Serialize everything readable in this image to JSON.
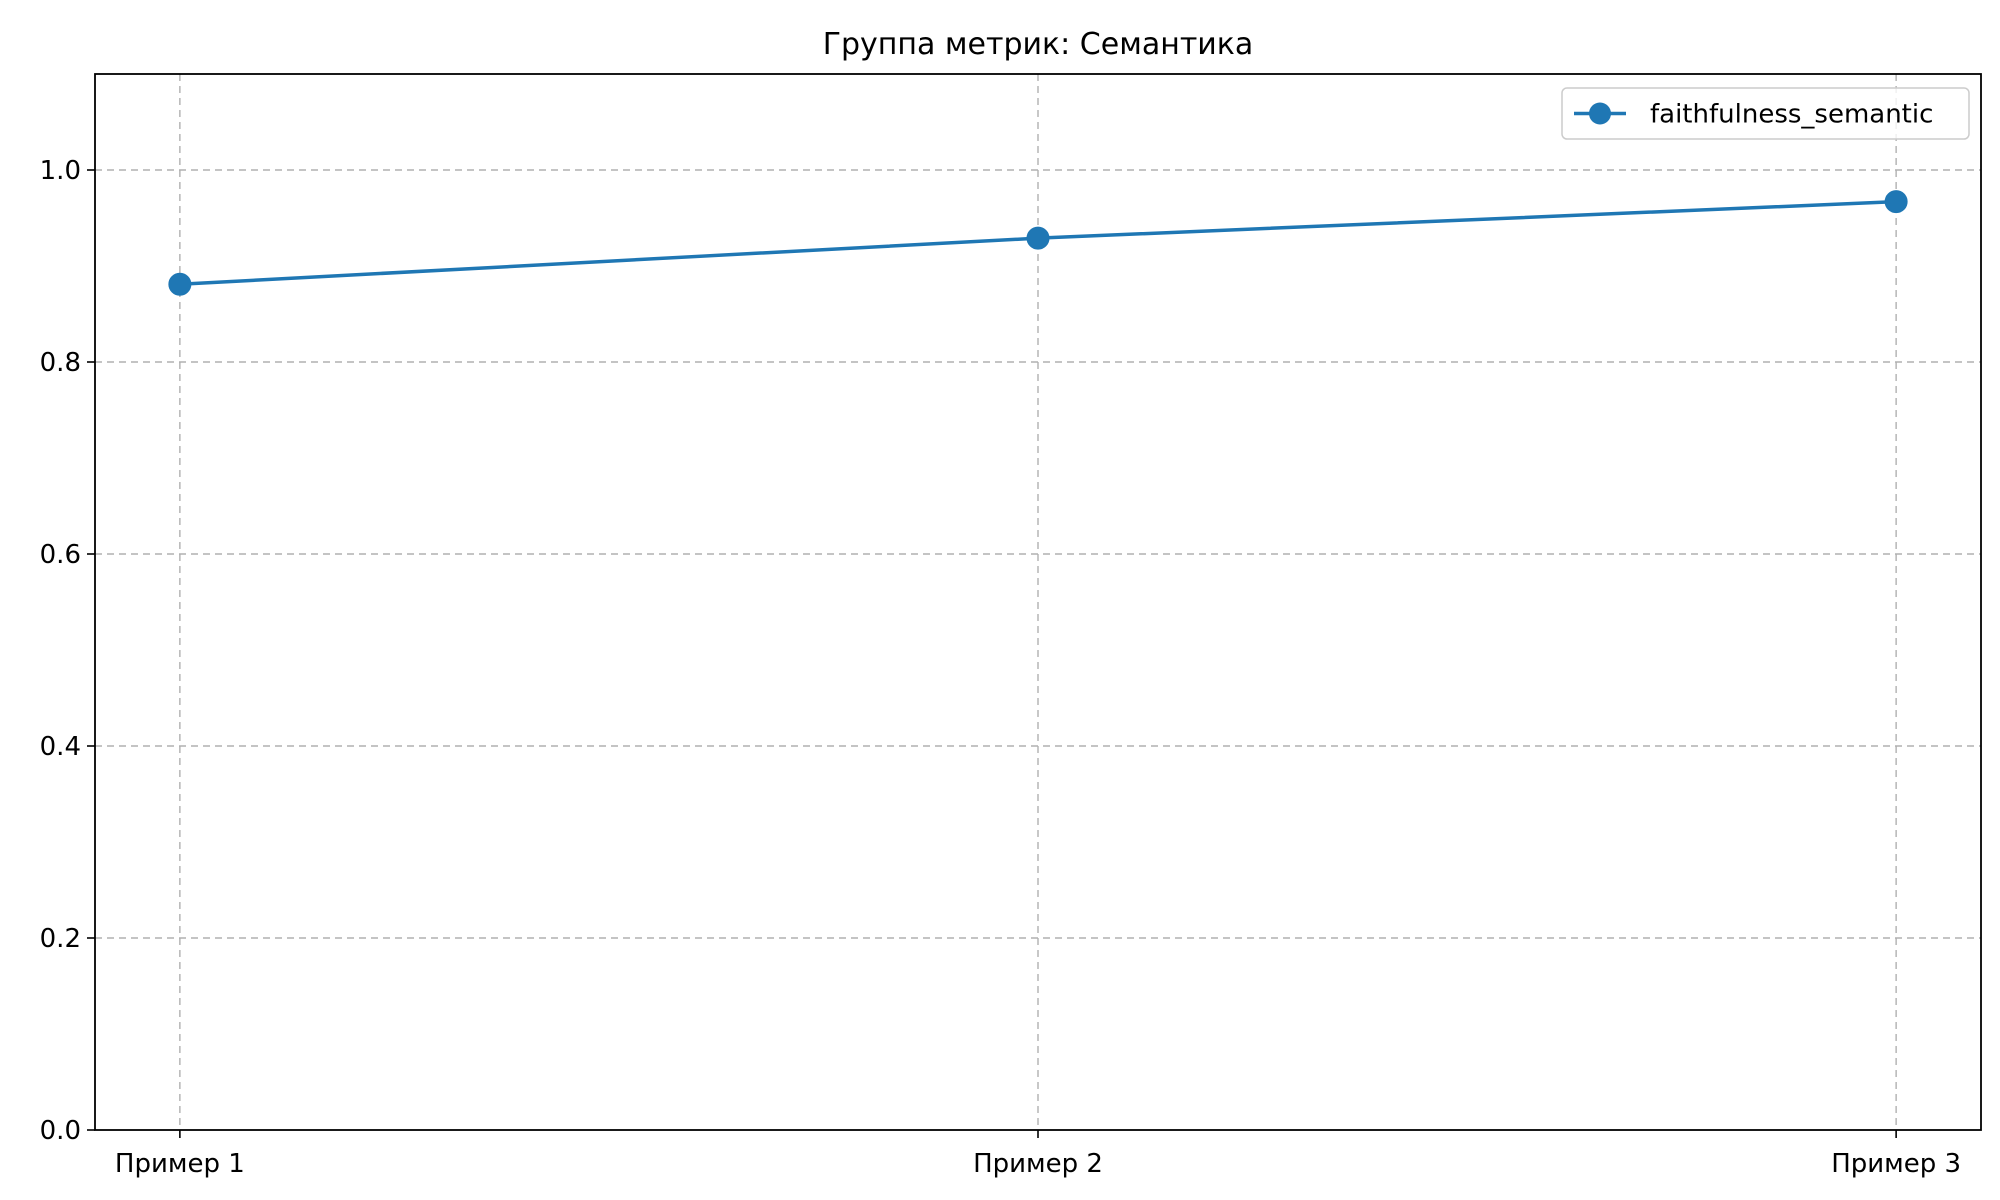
{
  "chart_data": {
    "type": "line",
    "title": "Группа метрик: Семантика",
    "xlabel": "",
    "ylabel": "",
    "categories": [
      "Пример 1",
      "Пример 2",
      "Пример 3"
    ],
    "ylim": [
      0,
      1.1
    ],
    "yticks": [
      "0.0",
      "0.2",
      "0.4",
      "0.6",
      "0.8",
      "1.0"
    ],
    "grid": true,
    "legend_position": "top-right",
    "series": [
      {
        "name": "faithfulness_semantic",
        "values": [
          0.881,
          0.929,
          0.967
        ],
        "color": "#1f77b4",
        "marker": "circle"
      }
    ]
  }
}
